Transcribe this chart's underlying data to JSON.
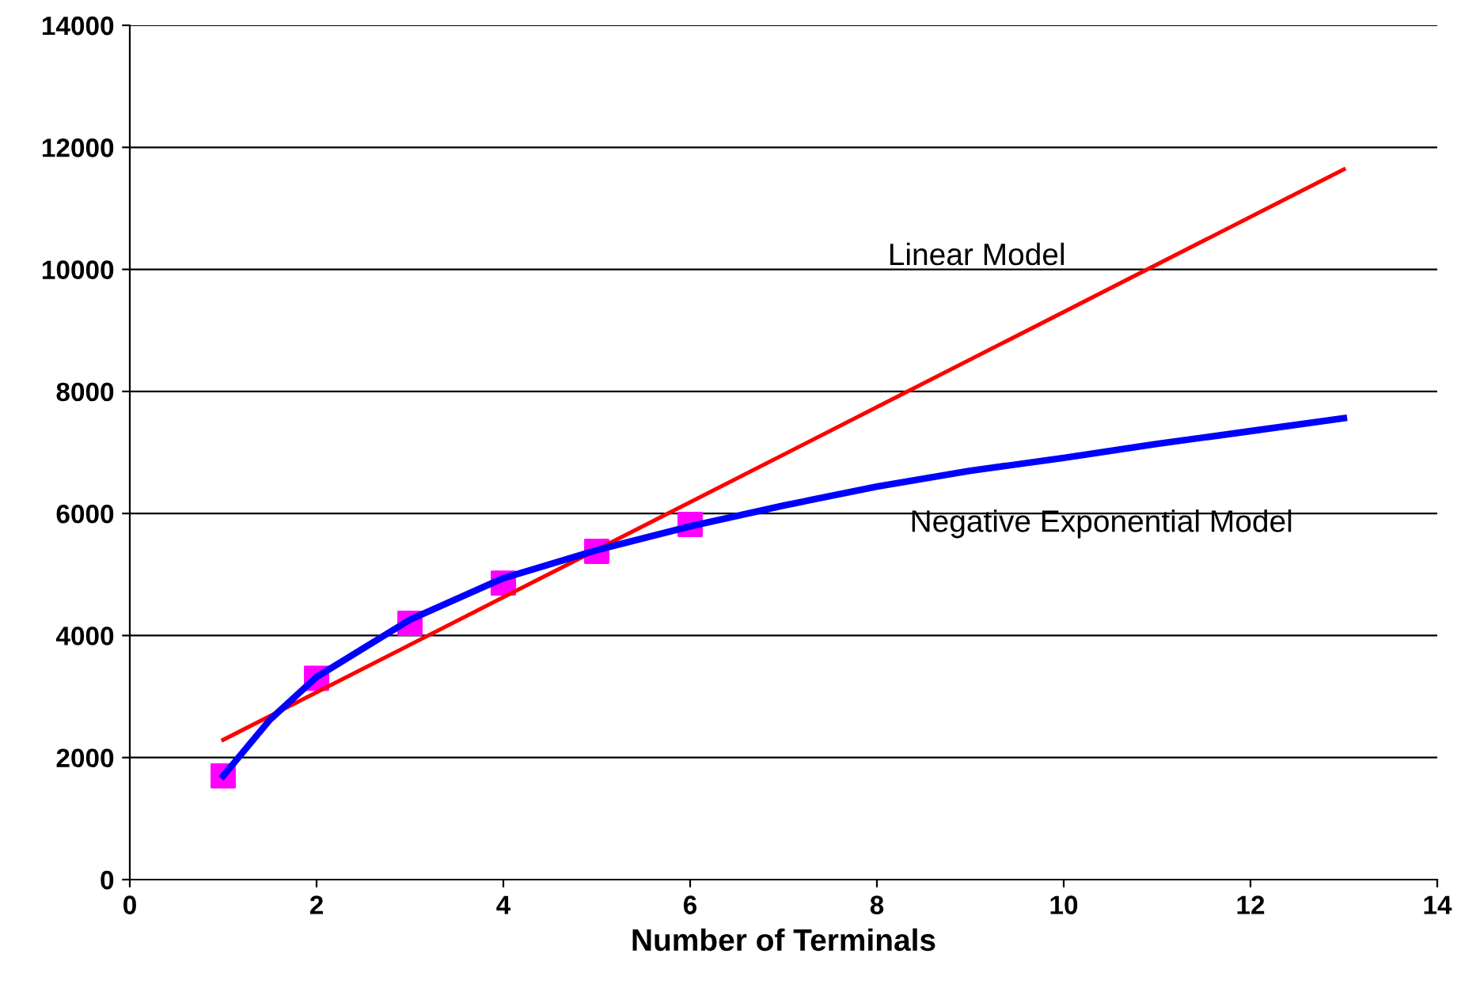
{
  "chart_data": {
    "type": "line",
    "xlabel": "Number of Terminals",
    "xlim": [
      0,
      14
    ],
    "xticks": [
      0,
      2,
      4,
      6,
      8,
      10,
      12,
      14
    ],
    "ylim": [
      0,
      14000
    ],
    "yticks": [
      0,
      2000,
      4000,
      6000,
      8000,
      10000,
      12000,
      14000
    ],
    "grid": "y",
    "series": [
      {
        "name": "Linear Model",
        "color": "#ff0000",
        "x": [
          1,
          13
        ],
        "values": [
          2290,
          11640
        ],
        "marker": "none"
      },
      {
        "name": "Negative Exponential Model",
        "color": "#0000ff",
        "x": [
          1,
          1.5,
          2,
          3,
          4,
          5,
          6,
          7,
          8,
          9,
          10,
          11,
          12,
          13
        ],
        "values": [
          1700,
          2620,
          3320,
          4260,
          4940,
          5400,
          5790,
          6130,
          6440,
          6700,
          6910,
          7140,
          7350,
          7560
        ],
        "marker": "none"
      },
      {
        "type": "scatter",
        "color": "#ff00ff",
        "x": [
          1,
          2,
          3,
          4,
          5,
          6
        ],
        "values": [
          1700,
          3300,
          4200,
          4860,
          5380,
          5820
        ],
        "marker": "square"
      }
    ]
  }
}
